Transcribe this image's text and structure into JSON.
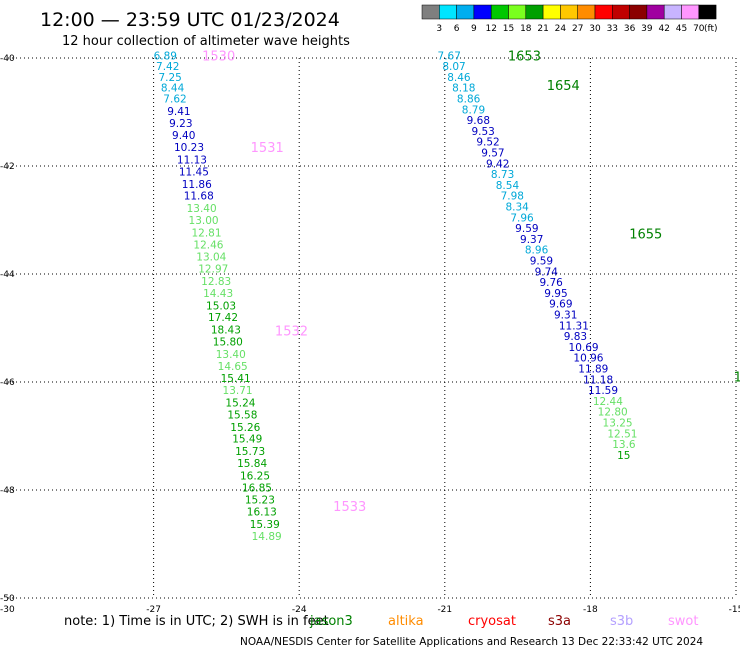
{
  "header": {
    "title": "12:00 — 23:59 UTC 01/23/2024",
    "subtitle": "12 hour collection of altimeter wave heights"
  },
  "colorbar": {
    "labels": [
      "3",
      "6",
      "9",
      "12",
      "15",
      "18",
      "21",
      "24",
      "27",
      "30",
      "33",
      "36",
      "39",
      "42",
      "45",
      "70"
    ],
    "unit": "(ft)",
    "colors": [
      "#7f7f7f",
      "#00e5ff",
      "#00aeef",
      "#0000ff",
      "#00c800",
      "#7aff1e",
      "#00a000",
      "#ffff00",
      "#ffc800",
      "#ff8c00",
      "#ff0000",
      "#c00000",
      "#8b0000",
      "#a000a0",
      "#c8b4ff",
      "#ff96ff",
      "#000000"
    ]
  },
  "note": "note:  1) Time is in UTC; 2) SWH is in feet",
  "legend": [
    {
      "name": "jason3",
      "color": "#008000"
    },
    {
      "name": "altika",
      "color": "#ff8c00"
    },
    {
      "name": "cryosat",
      "color": "#ff0000"
    },
    {
      "name": "s3a",
      "color": "#8b0000"
    },
    {
      "name": "s3b",
      "color": "#b4a0ff"
    },
    {
      "name": "swot",
      "color": "#ff96ff"
    }
  ],
  "footer": "NOAA/NESDIS Center for Satellite Applications and Research    13 Dec 22:33:42 UTC 2024",
  "chart_data": {
    "type": "scatter",
    "title": "12:00 — 23:59 UTC 01/23/2024",
    "subtitle": "12 hour collection of altimeter wave heights",
    "x_ticks": [
      "-27",
      "-24",
      "-21",
      "-18",
      "-15"
    ],
    "y_ticks": [
      "-40",
      "-42",
      "-44",
      "-46",
      "-48",
      "-50"
    ],
    "corner_labels": [
      "-30",
      "-30"
    ],
    "xlim": [
      -30,
      -15
    ],
    "ylim": [
      -50,
      -40
    ],
    "grid": true,
    "colors": {
      "c1": "#00a8d8",
      "c2": "#0000c0",
      "c3": "#66e066",
      "c4": "#00a000"
    },
    "passes": [
      {
        "label": "1530",
        "lon": -26.0,
        "lat": -39.95,
        "color": "#ff96ff"
      },
      {
        "label": "1531",
        "lon": -25.0,
        "lat": -41.65,
        "color": "#ff96ff"
      },
      {
        "label": "1532",
        "lon": -24.5,
        "lat": -45.05,
        "color": "#ff96ff"
      },
      {
        "label": "1533",
        "lon": -23.3,
        "lat": -48.3,
        "color": "#ff96ff"
      },
      {
        "label": "1653",
        "lon": -19.7,
        "lat": -39.95,
        "color": "#008000"
      },
      {
        "label": "1654",
        "lon": -18.9,
        "lat": -40.5,
        "color": "#008000"
      },
      {
        "label": "1655",
        "lon": -17.2,
        "lat": -43.25,
        "color": "#008000"
      },
      {
        "label": "1",
        "lon": -15.05,
        "lat": -45.9,
        "color": "#008000"
      }
    ],
    "points": [
      {
        "lon": -27.0,
        "lat": -39.95,
        "swh": "6.89",
        "c": "c1"
      },
      {
        "lon": -26.95,
        "lat": -40.15,
        "swh": "7.42",
        "c": "c1"
      },
      {
        "lon": -26.9,
        "lat": -40.35,
        "swh": "7.25",
        "c": "c1"
      },
      {
        "lon": -26.85,
        "lat": -40.55,
        "swh": "8.44",
        "c": "c1"
      },
      {
        "lon": -26.8,
        "lat": -40.75,
        "swh": "7.62",
        "c": "c1"
      },
      {
        "lon": -26.72,
        "lat": -40.98,
        "swh": "9.41",
        "c": "c2"
      },
      {
        "lon": -26.68,
        "lat": -41.2,
        "swh": "9.23",
        "c": "c2"
      },
      {
        "lon": -26.62,
        "lat": -41.43,
        "swh": "9.40",
        "c": "c2"
      },
      {
        "lon": -26.58,
        "lat": -41.65,
        "swh": "10.23",
        "c": "c2"
      },
      {
        "lon": -26.52,
        "lat": -41.88,
        "swh": "11.13",
        "c": "c2"
      },
      {
        "lon": -26.48,
        "lat": -42.1,
        "swh": "11.45",
        "c": "c2"
      },
      {
        "lon": -26.42,
        "lat": -42.33,
        "swh": "11.86",
        "c": "c2"
      },
      {
        "lon": -26.38,
        "lat": -42.55,
        "swh": "11.68",
        "c": "c2"
      },
      {
        "lon": -26.32,
        "lat": -42.78,
        "swh": "13.40",
        "c": "c3"
      },
      {
        "lon": -26.28,
        "lat": -43.0,
        "swh": "13.00",
        "c": "c3"
      },
      {
        "lon": -26.22,
        "lat": -43.23,
        "swh": "12.81",
        "c": "c3"
      },
      {
        "lon": -26.18,
        "lat": -43.45,
        "swh": "12.46",
        "c": "c3"
      },
      {
        "lon": -26.12,
        "lat": -43.68,
        "swh": "13.04",
        "c": "c3"
      },
      {
        "lon": -26.08,
        "lat": -43.9,
        "swh": "12.97",
        "c": "c3"
      },
      {
        "lon": -26.02,
        "lat": -44.13,
        "swh": "12.83",
        "c": "c3"
      },
      {
        "lon": -25.98,
        "lat": -44.35,
        "swh": "14.43",
        "c": "c3"
      },
      {
        "lon": -25.92,
        "lat": -44.58,
        "swh": "15.03",
        "c": "c4"
      },
      {
        "lon": -25.88,
        "lat": -44.8,
        "swh": "17.42",
        "c": "c4"
      },
      {
        "lon": -25.82,
        "lat": -45.03,
        "swh": "18.43",
        "c": "c4"
      },
      {
        "lon": -25.78,
        "lat": -45.25,
        "swh": "15.80",
        "c": "c4"
      },
      {
        "lon": -25.72,
        "lat": -45.48,
        "swh": "13.40",
        "c": "c3"
      },
      {
        "lon": -25.68,
        "lat": -45.7,
        "swh": "14.65",
        "c": "c3"
      },
      {
        "lon": -25.62,
        "lat": -45.93,
        "swh": "15.41",
        "c": "c4"
      },
      {
        "lon": -25.58,
        "lat": -46.15,
        "swh": "13.71",
        "c": "c3"
      },
      {
        "lon": -25.52,
        "lat": -46.38,
        "swh": "15.24",
        "c": "c4"
      },
      {
        "lon": -25.48,
        "lat": -46.6,
        "swh": "15.58",
        "c": "c4"
      },
      {
        "lon": -25.42,
        "lat": -46.83,
        "swh": "15.26",
        "c": "c4"
      },
      {
        "lon": -25.38,
        "lat": -47.05,
        "swh": "15.49",
        "c": "c4"
      },
      {
        "lon": -25.32,
        "lat": -47.28,
        "swh": "15.73",
        "c": "c4"
      },
      {
        "lon": -25.28,
        "lat": -47.5,
        "swh": "15.84",
        "c": "c4"
      },
      {
        "lon": -25.22,
        "lat": -47.73,
        "swh": "16.25",
        "c": "c4"
      },
      {
        "lon": -25.18,
        "lat": -47.95,
        "swh": "16.85",
        "c": "c4"
      },
      {
        "lon": -25.12,
        "lat": -48.18,
        "swh": "15.23",
        "c": "c4"
      },
      {
        "lon": -25.08,
        "lat": -48.4,
        "swh": "16.13",
        "c": "c4"
      },
      {
        "lon": -25.02,
        "lat": -48.63,
        "swh": "15.39",
        "c": "c4"
      },
      {
        "lon": -24.98,
        "lat": -48.85,
        "swh": "14.89",
        "c": "c3"
      },
      {
        "lon": -21.15,
        "lat": -39.95,
        "swh": "7.67",
        "c": "c1"
      },
      {
        "lon": -21.05,
        "lat": -40.15,
        "swh": "8.07",
        "c": "c1"
      },
      {
        "lon": -20.95,
        "lat": -40.35,
        "swh": "8.46",
        "c": "c1"
      },
      {
        "lon": -20.85,
        "lat": -40.55,
        "swh": "8.18",
        "c": "c1"
      },
      {
        "lon": -20.75,
        "lat": -40.75,
        "swh": "8.86",
        "c": "c1"
      },
      {
        "lon": -20.65,
        "lat": -40.95,
        "swh": "8.79",
        "c": "c1"
      },
      {
        "lon": -20.55,
        "lat": -41.15,
        "swh": "9.68",
        "c": "c2"
      },
      {
        "lon": -20.45,
        "lat": -41.35,
        "swh": "9.53",
        "c": "c2"
      },
      {
        "lon": -20.35,
        "lat": -41.55,
        "swh": "9.52",
        "c": "c2"
      },
      {
        "lon": -20.25,
        "lat": -41.75,
        "swh": "9.57",
        "c": "c2"
      },
      {
        "lon": -20.15,
        "lat": -41.95,
        "swh": "9.42",
        "c": "c2"
      },
      {
        "lon": -20.05,
        "lat": -42.15,
        "swh": "8.73",
        "c": "c1"
      },
      {
        "lon": -19.95,
        "lat": -42.35,
        "swh": "8.54",
        "c": "c1"
      },
      {
        "lon": -19.85,
        "lat": -42.55,
        "swh": "7.98",
        "c": "c1"
      },
      {
        "lon": -19.75,
        "lat": -42.75,
        "swh": "8.34",
        "c": "c1"
      },
      {
        "lon": -19.65,
        "lat": -42.95,
        "swh": "7.96",
        "c": "c1"
      },
      {
        "lon": -19.55,
        "lat": -43.15,
        "swh": "9.59",
        "c": "c2"
      },
      {
        "lon": -19.45,
        "lat": -43.35,
        "swh": "9.37",
        "c": "c2"
      },
      {
        "lon": -19.35,
        "lat": -43.55,
        "swh": "8.96",
        "c": "c1"
      },
      {
        "lon": -19.25,
        "lat": -43.75,
        "swh": "9.59",
        "c": "c2"
      },
      {
        "lon": -19.15,
        "lat": -43.95,
        "swh": "9.74",
        "c": "c2"
      },
      {
        "lon": -19.05,
        "lat": -44.15,
        "swh": "9.76",
        "c": "c2"
      },
      {
        "lon": -18.95,
        "lat": -44.35,
        "swh": "9.95",
        "c": "c2"
      },
      {
        "lon": -18.85,
        "lat": -44.55,
        "swh": "9.69",
        "c": "c2"
      },
      {
        "lon": -18.75,
        "lat": -44.75,
        "swh": "9.31",
        "c": "c2"
      },
      {
        "lon": -18.65,
        "lat": -44.95,
        "swh": "11.31",
        "c": "c2"
      },
      {
        "lon": -18.55,
        "lat": -45.15,
        "swh": "9.83",
        "c": "c2"
      },
      {
        "lon": -18.45,
        "lat": -45.35,
        "swh": "10.69",
        "c": "c2"
      },
      {
        "lon": -18.35,
        "lat": -45.55,
        "swh": "10.96",
        "c": "c2"
      },
      {
        "lon": -18.25,
        "lat": -45.75,
        "swh": "11.89",
        "c": "c2"
      },
      {
        "lon": -18.15,
        "lat": -45.95,
        "swh": "11.18",
        "c": "c2"
      },
      {
        "lon": -18.05,
        "lat": -46.15,
        "swh": "11.59",
        "c": "c2"
      },
      {
        "lon": -17.95,
        "lat": -46.35,
        "swh": "12.44",
        "c": "c3"
      },
      {
        "lon": -17.85,
        "lat": -46.55,
        "swh": "12.80",
        "c": "c3"
      },
      {
        "lon": -17.75,
        "lat": -46.75,
        "swh": "13.25",
        "c": "c3"
      },
      {
        "lon": -17.65,
        "lat": -46.95,
        "swh": "12.51",
        "c": "c3"
      },
      {
        "lon": -17.55,
        "lat": -47.15,
        "swh": "13.6",
        "c": "c3"
      },
      {
        "lon": -17.45,
        "lat": -47.35,
        "swh": "15",
        "c": "c4"
      }
    ]
  }
}
